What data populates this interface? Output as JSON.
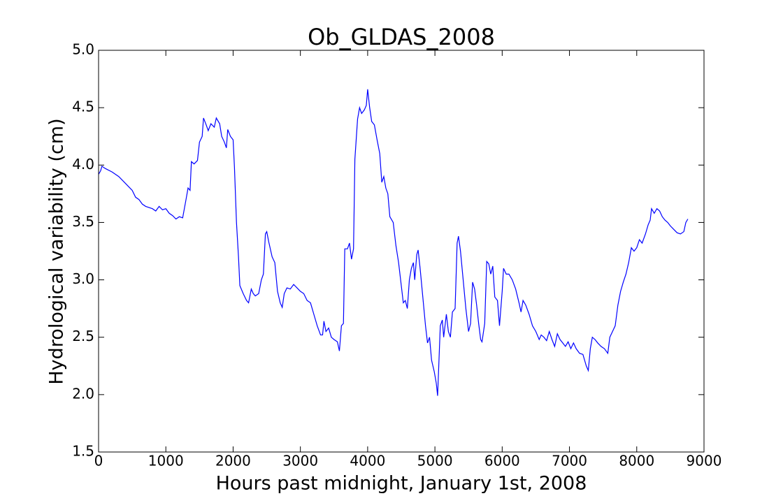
{
  "chart_data": {
    "type": "line",
    "title": "Ob_GLDAS_2008",
    "x_label": "Hours past midnight, January 1st, 2008",
    "y_label": "Hydrological variability (cm)",
    "x": [
      0,
      30,
      50,
      100,
      200,
      300,
      400,
      500,
      550,
      600,
      650,
      700,
      800,
      850,
      900,
      950,
      1000,
      1050,
      1100,
      1150,
      1200,
      1250,
      1300,
      1330,
      1360,
      1380,
      1420,
      1470,
      1500,
      1540,
      1560,
      1600,
      1630,
      1670,
      1720,
      1750,
      1800,
      1830,
      1870,
      1900,
      1920,
      1960,
      2000,
      2020,
      2050,
      2080,
      2100,
      2150,
      2200,
      2230,
      2270,
      2300,
      2330,
      2380,
      2420,
      2450,
      2480,
      2500,
      2530,
      2580,
      2620,
      2660,
      2700,
      2730,
      2760,
      2800,
      2850,
      2900,
      2950,
      3000,
      3050,
      3100,
      3150,
      3200,
      3250,
      3300,
      3330,
      3350,
      3380,
      3420,
      3460,
      3500,
      3550,
      3580,
      3610,
      3640,
      3660,
      3700,
      3730,
      3760,
      3790,
      3810,
      3850,
      3880,
      3910,
      3950,
      3980,
      4000,
      4030,
      4060,
      4100,
      4140,
      4180,
      4210,
      4240,
      4270,
      4300,
      4330,
      4380,
      4420,
      4460,
      4500,
      4530,
      4560,
      4590,
      4620,
      4650,
      4680,
      4700,
      4730,
      4750,
      4780,
      4820,
      4860,
      4890,
      4920,
      4950,
      4990,
      5020,
      5040,
      5080,
      5110,
      5130,
      5170,
      5200,
      5230,
      5260,
      5300,
      5330,
      5350,
      5380,
      5420,
      5460,
      5500,
      5530,
      5560,
      5590,
      5620,
      5650,
      5680,
      5700,
      5740,
      5770,
      5800,
      5830,
      5860,
      5890,
      5930,
      5960,
      6000,
      6020,
      6060,
      6100,
      6150,
      6200,
      6250,
      6280,
      6310,
      6350,
      6400,
      6450,
      6500,
      6550,
      6580,
      6620,
      6660,
      6700,
      6740,
      6780,
      6820,
      6860,
      6900,
      6940,
      6980,
      7020,
      7060,
      7100,
      7150,
      7200,
      7250,
      7280,
      7310,
      7340,
      7380,
      7420,
      7470,
      7520,
      7570,
      7600,
      7640,
      7680,
      7720,
      7760,
      7800,
      7840,
      7880,
      7920,
      7960,
      8000,
      8040,
      8080,
      8130,
      8170,
      8200,
      8220,
      8260,
      8300,
      8340,
      8380,
      8420,
      8460,
      8500,
      8550,
      8600,
      8650,
      8700,
      8730,
      8760
    ],
    "series": [
      {
        "name": "Ob_GLDAS_2008",
        "color": "#0000ff",
        "values": [
          3.92,
          3.95,
          3.99,
          3.97,
          3.94,
          3.9,
          3.84,
          3.78,
          3.72,
          3.7,
          3.66,
          3.64,
          3.62,
          3.6,
          3.64,
          3.61,
          3.62,
          3.58,
          3.56,
          3.53,
          3.55,
          3.54,
          3.7,
          3.8,
          3.78,
          4.03,
          4.01,
          4.04,
          4.2,
          4.25,
          4.41,
          4.35,
          4.3,
          4.36,
          4.33,
          4.41,
          4.36,
          4.25,
          4.2,
          4.15,
          4.31,
          4.25,
          4.22,
          3.98,
          3.5,
          3.2,
          2.95,
          2.88,
          2.82,
          2.8,
          2.92,
          2.88,
          2.86,
          2.88,
          3.0,
          3.05,
          3.4,
          3.42,
          3.33,
          3.2,
          3.15,
          2.9,
          2.8,
          2.76,
          2.88,
          2.93,
          2.92,
          2.96,
          2.93,
          2.9,
          2.88,
          2.82,
          2.8,
          2.7,
          2.6,
          2.52,
          2.52,
          2.64,
          2.55,
          2.58,
          2.5,
          2.48,
          2.46,
          2.38,
          2.6,
          2.62,
          3.27,
          3.27,
          3.32,
          3.18,
          3.27,
          4.05,
          4.4,
          4.5,
          4.45,
          4.48,
          4.52,
          4.66,
          4.5,
          4.38,
          4.35,
          4.22,
          4.1,
          3.85,
          3.9,
          3.8,
          3.75,
          3.55,
          3.5,
          3.3,
          3.15,
          2.95,
          2.8,
          2.82,
          2.75,
          3.0,
          3.1,
          3.15,
          3.0,
          3.22,
          3.26,
          3.1,
          2.85,
          2.6,
          2.45,
          2.5,
          2.3,
          2.2,
          2.1,
          1.99,
          2.6,
          2.65,
          2.5,
          2.7,
          2.55,
          2.5,
          2.72,
          2.75,
          3.32,
          3.38,
          3.25,
          3.0,
          2.75,
          2.55,
          2.62,
          2.98,
          2.92,
          2.78,
          2.62,
          2.48,
          2.46,
          2.62,
          3.16,
          3.14,
          3.05,
          3.12,
          2.85,
          2.82,
          2.6,
          2.9,
          3.1,
          3.05,
          3.05,
          3.0,
          2.92,
          2.8,
          2.72,
          2.82,
          2.78,
          2.7,
          2.6,
          2.55,
          2.48,
          2.52,
          2.5,
          2.47,
          2.55,
          2.48,
          2.42,
          2.53,
          2.48,
          2.45,
          2.42,
          2.46,
          2.4,
          2.45,
          2.4,
          2.36,
          2.35,
          2.25,
          2.21,
          2.4,
          2.5,
          2.48,
          2.45,
          2.42,
          2.4,
          2.36,
          2.5,
          2.55,
          2.6,
          2.78,
          2.9,
          2.98,
          3.05,
          3.15,
          3.28,
          3.25,
          3.28,
          3.35,
          3.32,
          3.4,
          3.48,
          3.52,
          3.62,
          3.58,
          3.62,
          3.6,
          3.55,
          3.52,
          3.5,
          3.47,
          3.44,
          3.41,
          3.4,
          3.42,
          3.5,
          3.53
        ]
      }
    ],
    "xlim": [
      0,
      9000
    ],
    "xticks": [
      0,
      1000,
      2000,
      3000,
      4000,
      5000,
      6000,
      7000,
      8000,
      9000
    ],
    "ylim": [
      1.5,
      5.0
    ],
    "yticks": [
      1.5,
      {
        "value": 2,
        "label": "2.0"
      },
      2.5,
      {
        "value": 3,
        "label": "3.0"
      },
      3.5,
      {
        "value": 4,
        "label": "4.0"
      },
      4.5,
      {
        "value": 5,
        "label": "5.0"
      }
    ],
    "grid": false
  }
}
